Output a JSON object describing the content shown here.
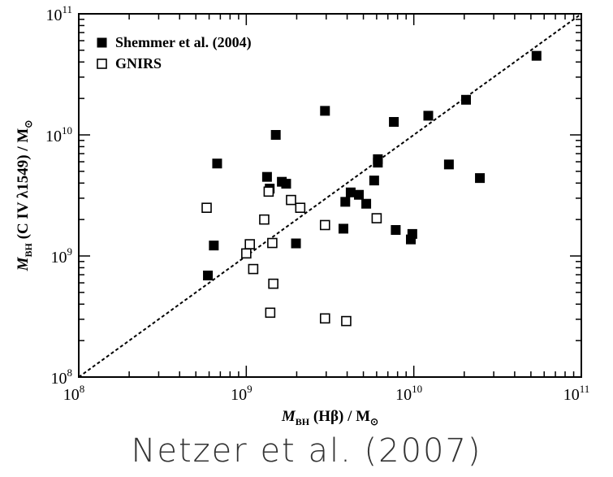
{
  "chart_data": {
    "type": "scatter",
    "xlabel": {
      "main": "M",
      "sub": "BH",
      "rest": " (Hβ) / M",
      "sun": "⊙"
    },
    "ylabel": {
      "main": "M",
      "sub": "BH",
      "rest": " (C IV λ1549) / M",
      "sun": "⊙"
    },
    "x_log_scale": true,
    "y_log_scale": true,
    "xlim": [
      100000000,
      100000000000
    ],
    "ylim": [
      100000000,
      100000000000
    ],
    "x_ticks": [
      {
        "base": "10",
        "exp": "8"
      },
      {
        "base": "10",
        "exp": "9"
      },
      {
        "base": "10",
        "exp": "10"
      },
      {
        "base": "10",
        "exp": "11"
      }
    ],
    "y_ticks": [
      {
        "base": "10",
        "exp": "8"
      },
      {
        "base": "10",
        "exp": "9"
      },
      {
        "base": "10",
        "exp": "10"
      },
      {
        "base": "10",
        "exp": "11"
      }
    ],
    "legend_position": "top-left",
    "reference_line": {
      "style": "dashed",
      "from": [
        100000000,
        100000000
      ],
      "to": [
        100000000000,
        100000000000
      ]
    },
    "series": [
      {
        "name": "Shemmer et al. (2004)",
        "marker": "filled-square",
        "color": "#000000",
        "points": [
          [
            590000000.0,
            690000000.0
          ],
          [
            640000000.0,
            1220000000.0
          ],
          [
            670000000.0,
            5800000000.0
          ],
          [
            1330000000.0,
            4500000000.0
          ],
          [
            1380000000.0,
            3600000000.0
          ],
          [
            1500000000.0,
            10000000000.0
          ],
          [
            1630000000.0,
            4100000000.0
          ],
          [
            1730000000.0,
            3950000000.0
          ],
          [
            1980000000.0,
            1270000000.0
          ],
          [
            2950000000.0,
            15800000000.0
          ],
          [
            3800000000.0,
            1680000000.0
          ],
          [
            3900000000.0,
            2800000000.0
          ],
          [
            4200000000.0,
            3350000000.0
          ],
          [
            4700000000.0,
            3200000000.0
          ],
          [
            5200000000.0,
            2700000000.0
          ],
          [
            5800000000.0,
            4200000000.0
          ],
          [
            6100000000.0,
            6300000000.0
          ],
          [
            6100000000.0,
            5900000000.0
          ],
          [
            7600000000.0,
            12800000000.0
          ],
          [
            7800000000.0,
            1640000000.0
          ],
          [
            9600000000.0,
            1370000000.0
          ],
          [
            9800000000.0,
            1520000000.0
          ],
          [
            12200000000.0,
            14400000000.0
          ],
          [
            16200000000.0,
            5700000000.0
          ],
          [
            20500000000.0,
            19500000000.0
          ],
          [
            24800000000.0,
            4400000000.0
          ],
          [
            54000000000.0,
            45000000000.0
          ]
        ]
      },
      {
        "name": "GNIRS",
        "marker": "open-square",
        "color": "#000000",
        "points": [
          [
            580000000.0,
            2500000000.0
          ],
          [
            1000000000.0,
            1050000000.0
          ],
          [
            1050000000.0,
            1250000000.0
          ],
          [
            1100000000.0,
            780000000.0
          ],
          [
            1280000000.0,
            2000000000.0
          ],
          [
            1360000000.0,
            3400000000.0
          ],
          [
            1390000000.0,
            340000000.0
          ],
          [
            1430000000.0,
            1280000000.0
          ],
          [
            1450000000.0,
            590000000.0
          ],
          [
            1850000000.0,
            2900000000.0
          ],
          [
            2100000000.0,
            2500000000.0
          ],
          [
            2950000000.0,
            1800000000.0
          ],
          [
            2950000000.0,
            305000000.0
          ],
          [
            3950000000.0,
            290000000.0
          ],
          [
            6000000000.0,
            2050000000.0
          ]
        ]
      }
    ]
  },
  "caption": "Netzer et al. (2007)"
}
